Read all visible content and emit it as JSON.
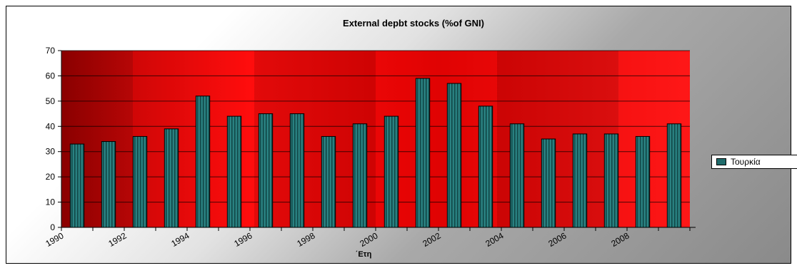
{
  "chart_data": {
    "type": "bar",
    "title": "External depbt stocks (%of GNI)",
    "xlabel": "΄Ετη",
    "ylabel": "",
    "ylim": [
      0,
      70
    ],
    "yticks": [
      0,
      10,
      20,
      30,
      40,
      50,
      60,
      70
    ],
    "x_tick_labels": [
      "1990",
      "1992",
      "1994",
      "1996",
      "1998",
      "2000",
      "2002",
      "2004",
      "2006",
      "2008"
    ],
    "categories": [
      1990,
      1991,
      1992,
      1993,
      1994,
      1995,
      1996,
      1997,
      1998,
      1999,
      2000,
      2001,
      2002,
      2003,
      2004,
      2005,
      2006,
      2007,
      2008,
      2009
    ],
    "series": [
      {
        "name": "Τουρκία",
        "values": [
          33,
          34,
          36,
          39,
          52,
          44,
          45,
          45,
          36,
          41,
          44,
          59,
          57,
          48,
          41,
          35,
          37,
          37,
          36,
          41
        ]
      }
    ],
    "grid": true,
    "legend": "right",
    "colors": {
      "bar": "#1f6b6b",
      "bar_light": "#2f8f8f",
      "plot_background": "#e00000",
      "gridline": "#000000"
    }
  }
}
